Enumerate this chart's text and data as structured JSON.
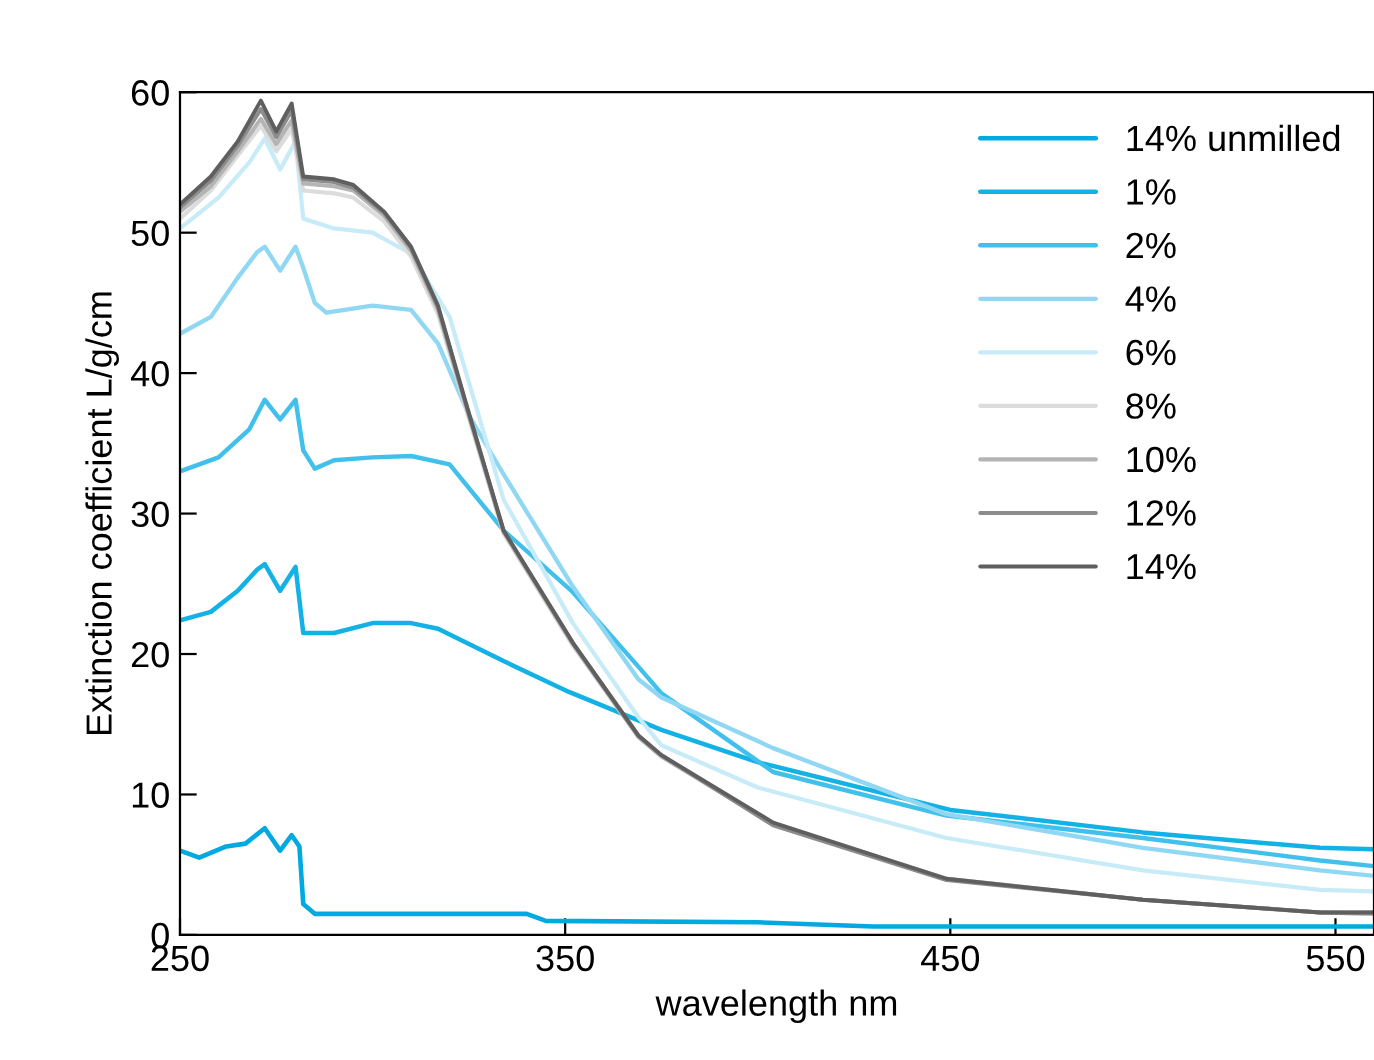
{
  "chart_data": {
    "type": "line",
    "xlabel": "wavelength nm",
    "ylabel": "Extinction coefficient L/g/cm",
    "xlim": [
      250,
      560
    ],
    "xticks": [
      250,
      350,
      450,
      550
    ],
    "ylim": [
      0,
      60
    ],
    "yticks": [
      0,
      10,
      20,
      30,
      40,
      50,
      60
    ],
    "grid": false,
    "legend": "top right",
    "marker": "none",
    "line_style": "solid",
    "series": [
      {
        "name": "14% unmilled",
        "color": "#00a9e0",
        "x": [
          250,
          255,
          262,
          267,
          272,
          276,
          279,
          281,
          282,
          285,
          300,
          340,
          345,
          400,
          430,
          505,
          560
        ],
        "values": [
          6,
          5.5,
          6.3,
          6.5,
          7.6,
          6,
          7.1,
          6.3,
          2.2,
          1.5,
          1.5,
          1.5,
          1,
          0.9,
          0.6,
          0.6,
          0.6
        ]
      },
      {
        "name": "1%",
        "color": "#12b1e6",
        "x": [
          250,
          258,
          265,
          270,
          272,
          276,
          280,
          282,
          290,
          300,
          310,
          317,
          334,
          351,
          375,
          400,
          450,
          500,
          546,
          560
        ],
        "values": [
          22.4,
          23,
          24.5,
          26,
          26.4,
          24.5,
          26.2,
          21.5,
          21.5,
          22.2,
          22.2,
          21.8,
          19.5,
          17.3,
          14.6,
          12.3,
          8.9,
          7.3,
          6.2,
          6.1
        ]
      },
      {
        "name": "2%",
        "color": "#41c0ec",
        "x": [
          250,
          260,
          268,
          272,
          276,
          280,
          282,
          285,
          290,
          300,
          310,
          320,
          334,
          352,
          369,
          375,
          404,
          449,
          500,
          546,
          560
        ],
        "values": [
          33,
          34,
          36,
          38.1,
          36.7,
          38.1,
          34.5,
          33.2,
          33.8,
          34,
          34.1,
          33.5,
          28.8,
          24.4,
          19.1,
          17.2,
          11.6,
          8.5,
          6.9,
          5.3,
          4.9
        ]
      },
      {
        "name": "4%",
        "color": "#8fd7f3",
        "x": [
          250,
          258,
          265,
          270,
          272,
          276,
          280,
          282,
          285,
          288,
          300,
          310,
          317,
          325,
          334,
          352,
          369,
          375,
          404,
          449,
          500,
          546,
          560
        ],
        "values": [
          42.8,
          44,
          46.8,
          48.6,
          49,
          47.3,
          49,
          47.5,
          45,
          44.3,
          44.8,
          44.5,
          42.1,
          37,
          32.8,
          24.8,
          18.2,
          16.9,
          13.3,
          8.6,
          6.2,
          4.6,
          4.2
        ]
      },
      {
        "name": "6%",
        "color": "#c8ebf8",
        "x": [
          250,
          260,
          268,
          272,
          276,
          280,
          282,
          290,
          300,
          310,
          320,
          334,
          352,
          369,
          375,
          400,
          449,
          500,
          546,
          560
        ],
        "values": [
          50.3,
          52.5,
          55,
          56.7,
          54.5,
          56.5,
          51,
          50.3,
          50,
          48.5,
          44,
          31,
          22.2,
          15.5,
          13.5,
          10.5,
          6.9,
          4.6,
          3.2,
          3.1
        ]
      },
      {
        "name": "8%",
        "color": "#dcdcdc",
        "x": [
          250,
          258,
          265,
          271,
          275,
          279,
          282,
          290,
          295,
          303,
          310,
          317,
          324,
          334,
          352,
          369,
          375,
          404,
          449,
          500,
          546,
          560
        ],
        "values": [
          51,
          53,
          55.5,
          57.6,
          55.8,
          57.4,
          53,
          52.8,
          52.5,
          50.8,
          48.3,
          44.2,
          37.7,
          28.6,
          20.6,
          14.1,
          12.7,
          7.9,
          4,
          2.5,
          1.6,
          1.5
        ]
      },
      {
        "name": "10%",
        "color": "#b4b4b4",
        "x": [
          250,
          258,
          265,
          271,
          275,
          279,
          282,
          290,
          295,
          303,
          310,
          317,
          324,
          334,
          352,
          369,
          375,
          404,
          449,
          500,
          546,
          560
        ],
        "values": [
          51.5,
          53.3,
          55.8,
          58.1,
          56.3,
          58,
          53.5,
          53.3,
          53,
          51.2,
          48.7,
          44.5,
          37.9,
          28.7,
          20.7,
          14.1,
          12.7,
          7.9,
          4,
          2.5,
          1.6,
          1.5
        ]
      },
      {
        "name": "12%",
        "color": "#8c8c8c",
        "x": [
          250,
          258,
          265,
          271,
          275,
          279,
          282,
          290,
          295,
          303,
          310,
          317,
          324,
          334,
          352,
          369,
          375,
          404,
          449,
          500,
          546,
          560
        ],
        "values": [
          51.8,
          53.7,
          56.2,
          58.8,
          56.8,
          58.7,
          53.8,
          53.6,
          53.2,
          51.4,
          48.9,
          44.7,
          38,
          28.8,
          20.8,
          14.2,
          12.8,
          7.8,
          3.9,
          2.5,
          1.6,
          1.6
        ]
      },
      {
        "name": "14%",
        "color": "#5f5f5f",
        "x": [
          250,
          258,
          265,
          271,
          275,
          279,
          282,
          290,
          295,
          303,
          310,
          317,
          324,
          334,
          352,
          369,
          375,
          404,
          449,
          500,
          546,
          560
        ],
        "values": [
          52,
          54,
          56.5,
          59.4,
          57.2,
          59.2,
          54,
          53.8,
          53.4,
          51.5,
          49,
          44.8,
          38.1,
          28.8,
          20.8,
          14.2,
          12.8,
          8,
          4,
          2.5,
          1.6,
          1.6
        ]
      }
    ]
  }
}
